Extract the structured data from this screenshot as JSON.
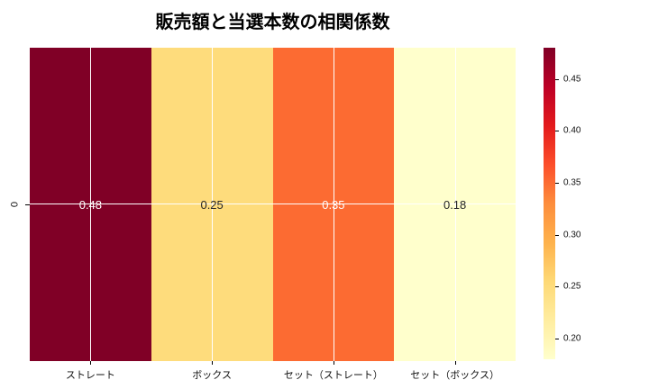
{
  "chart_data": {
    "type": "heatmap",
    "title": "販売額と当選本数の相関係数",
    "row_labels": [
      "0"
    ],
    "columns": [
      "ストレート",
      "ボックス",
      "セット（ストレート）",
      "セット（ボックス）"
    ],
    "values": [
      [
        0.48,
        0.25,
        0.35,
        0.18
      ]
    ],
    "annotations": [
      [
        "0.48",
        "0.25",
        "0.35",
        "0.18"
      ]
    ],
    "vmin": 0.18,
    "vmax": 0.48,
    "colormap": "YlOrRd",
    "colormap_stops": [
      "#ffffcc",
      "#ffeda0",
      "#fed976",
      "#feb24c",
      "#fd8d3c",
      "#fc4e2a",
      "#e31a1c",
      "#bd0026",
      "#800026"
    ],
    "cell_colors": [
      [
        "#800026",
        "#fedc7c",
        "#fc6b32",
        "#ffffcc"
      ]
    ],
    "annotation_colors": [
      [
        "#ffffff",
        "#262626",
        "#ffffff",
        "#262626"
      ]
    ],
    "colorbar_tick_labels": [
      "0.45",
      "0.40",
      "0.35",
      "0.30",
      "0.25",
      "0.20"
    ],
    "colorbar_tick_values": [
      0.45,
      0.4,
      0.35,
      0.3,
      0.25,
      0.2
    ],
    "grid_color": "#ffffff",
    "background": "#ffffff",
    "legend": "colorbar-right",
    "grid": true
  }
}
